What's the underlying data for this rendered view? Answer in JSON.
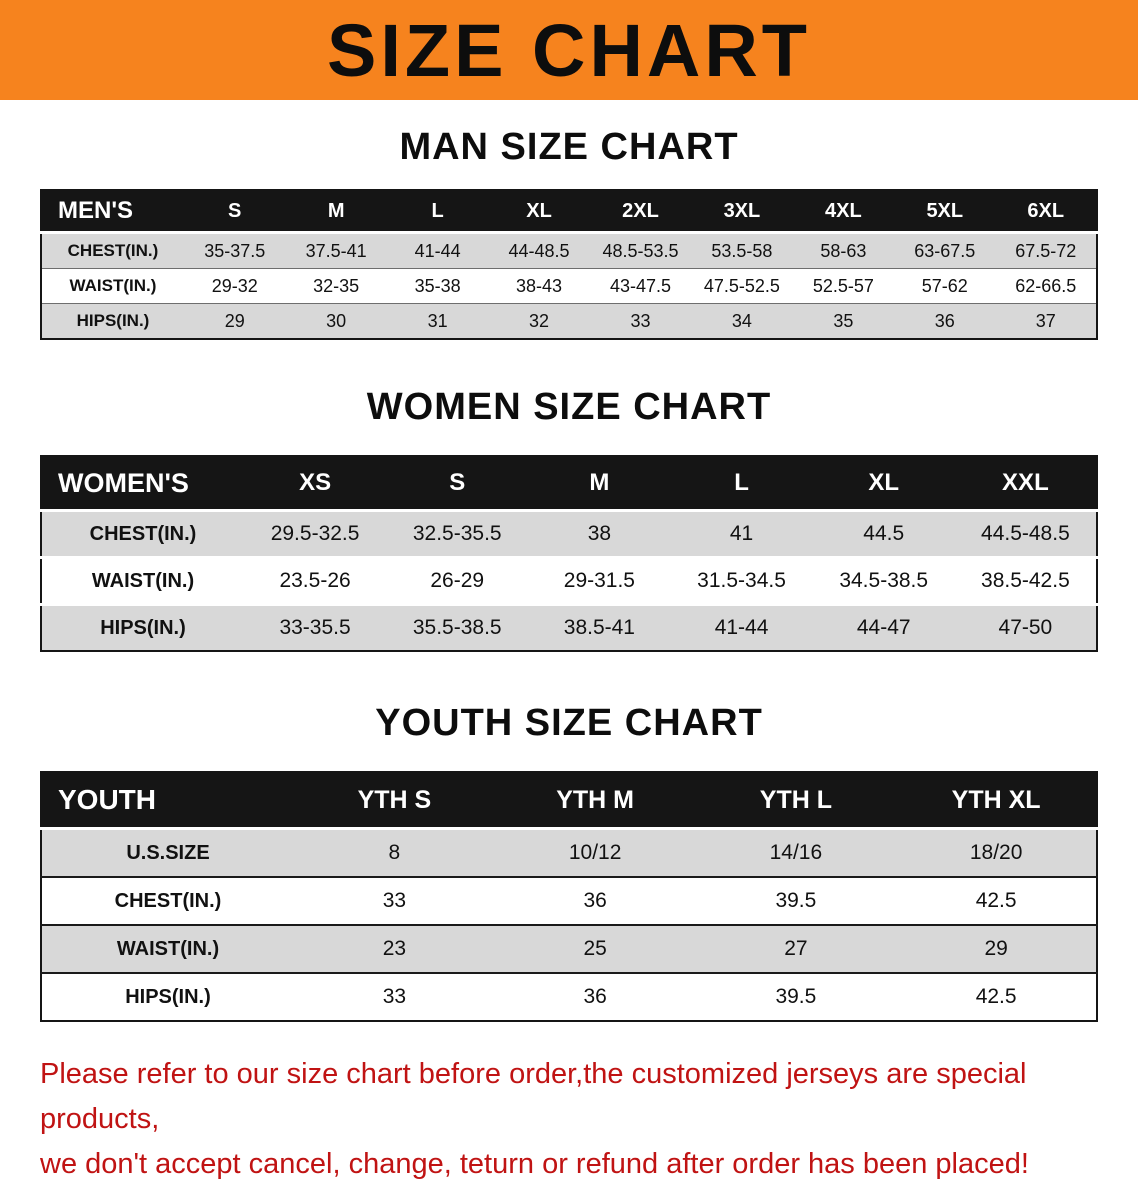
{
  "banner": {
    "title": "SIZE CHART",
    "bg_color": "#f6831e"
  },
  "sections": [
    {
      "heading": "MAN SIZE CHART",
      "table": {
        "columns": [
          "MEN'S",
          "S",
          "M",
          "L",
          "XL",
          "2XL",
          "3XL",
          "4XL",
          "5XL",
          "6XL"
        ],
        "rows": [
          [
            "CHEST(IN.)",
            "35-37.5",
            "37.5-41",
            "41-44",
            "44-48.5",
            "48.5-53.5",
            "53.5-58",
            "58-63",
            "63-67.5",
            "67.5-72"
          ],
          [
            "WAIST(IN.)",
            "29-32",
            "32-35",
            "35-38",
            "38-43",
            "43-47.5",
            "47.5-52.5",
            "52.5-57",
            "57-62",
            "62-66.5"
          ],
          [
            "HIPS(IN.)",
            "29",
            "30",
            "31",
            "32",
            "33",
            "34",
            "35",
            "36",
            "37"
          ]
        ]
      }
    },
    {
      "heading": "WOMEN SIZE CHART",
      "table": {
        "columns": [
          "WOMEN'S",
          "XS",
          "S",
          "M",
          "L",
          "XL",
          "XXL"
        ],
        "rows": [
          [
            "CHEST(IN.)",
            "29.5-32.5",
            "32.5-35.5",
            "38",
            "41",
            "44.5",
            "44.5-48.5"
          ],
          [
            "WAIST(IN.)",
            "23.5-26",
            "26-29",
            "29-31.5",
            "31.5-34.5",
            "34.5-38.5",
            "38.5-42.5"
          ],
          [
            "HIPS(IN.)",
            "33-35.5",
            "35.5-38.5",
            "38.5-41",
            "41-44",
            "44-47",
            "47-50"
          ]
        ]
      }
    },
    {
      "heading": "YOUTH SIZE CHART",
      "table": {
        "columns": [
          "YOUTH",
          "YTH S",
          "YTH M",
          "YTH L",
          "YTH XL"
        ],
        "rows": [
          [
            "U.S.SIZE",
            "8",
            "10/12",
            "14/16",
            "18/20"
          ],
          [
            "CHEST(IN.)",
            "33",
            "36",
            "39.5",
            "42.5"
          ],
          [
            "WAIST(IN.)",
            "23",
            "25",
            "27",
            "29"
          ],
          [
            "HIPS(IN.)",
            "33",
            "36",
            "39.5",
            "42.5"
          ]
        ]
      }
    }
  ],
  "footer": {
    "line1": "Please refer to our size chart before order,the customized jerseys are special products,",
    "line2": "we don't accept cancel, change, teturn or refund after order has been placed!",
    "text_color": "#c01313"
  }
}
